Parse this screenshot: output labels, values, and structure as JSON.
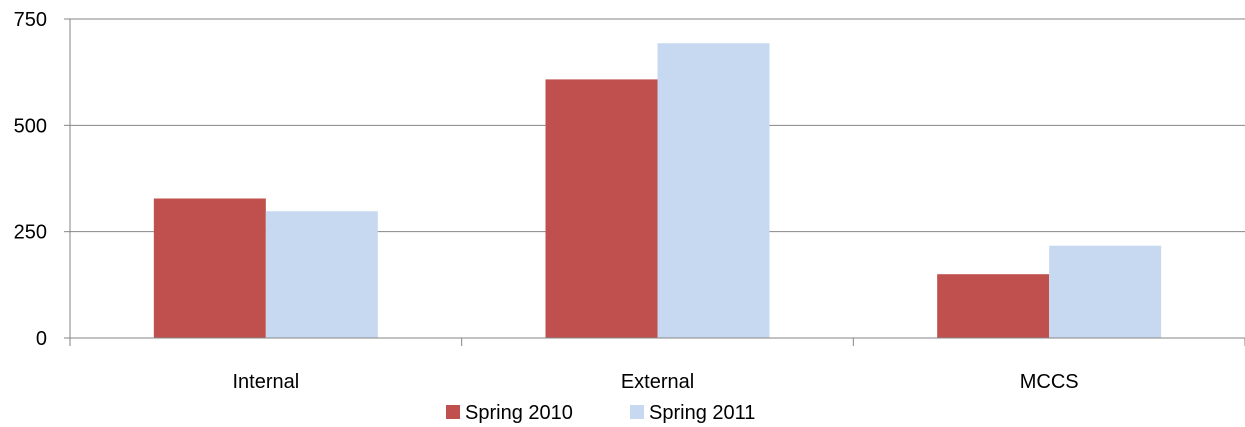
{
  "chart_data": {
    "type": "bar",
    "title": "",
    "xlabel": "",
    "ylabel": "",
    "categories": [
      "Internal",
      "External",
      "MCCS"
    ],
    "series": [
      {
        "name": "Spring 2010",
        "color": "#c0504d",
        "values": [
          328,
          608,
          150
        ]
      },
      {
        "name": "Spring 2011",
        "color": "#c6d9f1",
        "values": [
          298,
          693,
          217
        ]
      }
    ],
    "ylim": [
      0,
      750
    ],
    "yticks": [
      0,
      250,
      500,
      750
    ],
    "grid": true,
    "legend_position": "bottom"
  }
}
